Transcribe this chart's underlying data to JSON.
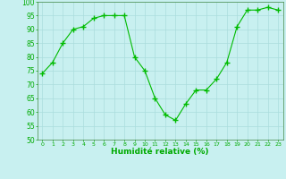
{
  "x": [
    0,
    1,
    2,
    3,
    4,
    5,
    6,
    7,
    8,
    9,
    10,
    11,
    12,
    13,
    14,
    15,
    16,
    17,
    18,
    19,
    20,
    21,
    22,
    23
  ],
  "y": [
    74,
    78,
    85,
    90,
    91,
    94,
    95,
    95,
    95,
    80,
    75,
    65,
    59,
    57,
    63,
    68,
    68,
    72,
    78,
    91,
    97,
    97,
    98,
    97
  ],
  "line_color": "#00bb00",
  "marker_color": "#00bb00",
  "bg_color": "#c8f0f0",
  "grid_color": "#aadddd",
  "xlabel": "Humidité relative (%)",
  "xlabel_color": "#00aa00",
  "tick_color": "#00aa00",
  "spine_color": "#448844",
  "ylim": [
    50,
    100
  ],
  "xlim": [
    -0.5,
    23.5
  ],
  "yticks": [
    50,
    55,
    60,
    65,
    70,
    75,
    80,
    85,
    90,
    95,
    100
  ],
  "xticks": [
    0,
    1,
    2,
    3,
    4,
    5,
    6,
    7,
    8,
    9,
    10,
    11,
    12,
    13,
    14,
    15,
    16,
    17,
    18,
    19,
    20,
    21,
    22,
    23
  ]
}
